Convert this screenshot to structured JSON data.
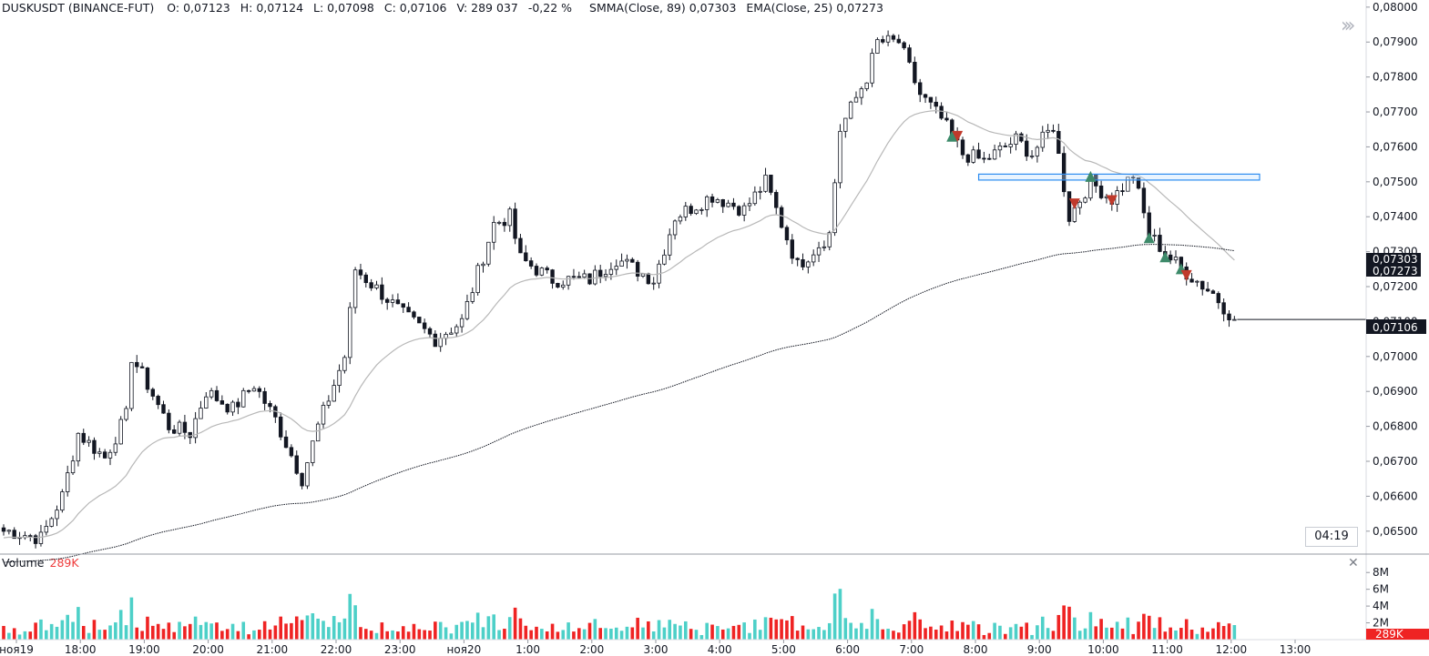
{
  "legend": {
    "symbol": "DUSKUSDT (BINANCE-FUT)",
    "open": "O: 0,07123",
    "high": "H: 0,07124",
    "low": "L: 0,07098",
    "close": "C: 0,07106",
    "volume": "V: 289 037",
    "change": "-0,22 %",
    "smma": "SMMA(Close, 89)  0,07303",
    "ema": "EMA(Close, 25)  0,07273"
  },
  "volume_legend": {
    "label": "Volume",
    "value": "289K"
  },
  "timer": "04:19",
  "price_axis": {
    "labels": [
      "0,08000",
      "0,07900",
      "0,07800",
      "0,07700",
      "0,07600",
      "0,07500",
      "0,07400",
      "0,07300",
      "0,07200",
      "0,07100",
      "0,07000",
      "0,06900",
      "0,06800",
      "0,06700",
      "0,06600",
      "0,06500"
    ],
    "smma_tag": "0,07303",
    "ema_tag": "0,07273",
    "last_tag": "0,07106"
  },
  "volume_axis": {
    "labels": [
      "8M",
      "6M",
      "4M",
      "2M"
    ],
    "last_tag": "289K"
  },
  "time_axis": [
    "ноя19",
    "18:00",
    "19:00",
    "20:00",
    "21:00",
    "22:00",
    "23:00",
    "ноя20",
    "1:00",
    "2:00",
    "3:00",
    "4:00",
    "5:00",
    "6:00",
    "7:00",
    "8:00",
    "9:00",
    "10:00",
    "11:00",
    "12:00",
    "13:00"
  ],
  "colors": {
    "up": "#4dd0c8",
    "down": "#ef2323",
    "candle": "#131722",
    "ema": "#b8b8b8",
    "smma": "#131722",
    "box": "#2d8cf0",
    "buy": "#3d8a6a",
    "sell": "#c0392b"
  },
  "chart_data": {
    "type": "candlestick",
    "title": "DUSKUSDT (BINANCE-FUT)",
    "interval_minutes": 5,
    "ylim": [
      0.0645,
      0.0801
    ],
    "close_path": [
      [
        "17:10",
        0.065
      ],
      [
        "17:40",
        0.0648
      ],
      [
        "18:00",
        0.066
      ],
      [
        "18:15",
        0.0678
      ],
      [
        "18:40",
        0.0671
      ],
      [
        "19:00",
        0.0683
      ],
      [
        "19:05",
        0.07
      ],
      [
        "19:20",
        0.0692
      ],
      [
        "19:40",
        0.068
      ],
      [
        "20:00",
        0.0678
      ],
      [
        "20:15",
        0.069
      ],
      [
        "20:40",
        0.0685
      ],
      [
        "21:00",
        0.0692
      ],
      [
        "21:20",
        0.0682
      ],
      [
        "21:45",
        0.0665
      ],
      [
        "22:00",
        0.068
      ],
      [
        "22:25",
        0.07
      ],
      [
        "22:35",
        0.0725
      ],
      [
        "23:00",
        0.0718
      ],
      [
        "23:20",
        0.0712
      ],
      [
        "23:50",
        0.0705
      ],
      [
        "00:15",
        0.071
      ],
      [
        "00:45",
        0.0738
      ],
      [
        "01:00",
        0.074
      ],
      [
        "01:10",
        0.0728
      ],
      [
        "01:40",
        0.0722
      ],
      [
        "02:15",
        0.0722
      ],
      [
        "02:40",
        0.0728
      ],
      [
        "03:15",
        0.0722
      ],
      [
        "03:35",
        0.074
      ],
      [
        "04:10",
        0.0746
      ],
      [
        "04:40",
        0.0742
      ],
      [
        "05:00",
        0.075
      ],
      [
        "05:30",
        0.0726
      ],
      [
        "06:00",
        0.0735
      ],
      [
        "06:10",
        0.0765
      ],
      [
        "06:35",
        0.078
      ],
      [
        "06:45",
        0.079
      ],
      [
        "07:05",
        0.079
      ],
      [
        "07:25",
        0.0775
      ],
      [
        "07:45",
        0.0768
      ],
      [
        "08:05",
        0.0758
      ],
      [
        "08:25",
        0.0756
      ],
      [
        "08:55",
        0.0762
      ],
      [
        "09:10",
        0.0758
      ],
      [
        "09:30",
        0.0766
      ],
      [
        "09:45",
        0.074
      ],
      [
        "10:05",
        0.075
      ],
      [
        "10:25",
        0.0745
      ],
      [
        "10:45",
        0.0752
      ],
      [
        "11:00",
        0.0735
      ],
      [
        "11:20",
        0.0728
      ],
      [
        "11:35",
        0.0724
      ],
      [
        "12:00",
        0.0718
      ],
      [
        "12:20",
        0.07106
      ]
    ],
    "indicators": [
      {
        "name": "SMMA(Close, 89)",
        "last": 0.07303
      },
      {
        "name": "EMA(Close, 25)",
        "last": 0.07273
      }
    ],
    "last_price": 0.07106,
    "change_pct": -0.22,
    "last_volume": 289037,
    "volume_ylim": [
      0,
      9000000
    ],
    "zone": {
      "from": "08:20",
      "to": "13:00",
      "low": 0.07505,
      "high": 0.07522
    },
    "signals": [
      {
        "t": "07:55",
        "type": "buy"
      },
      {
        "t": "07:55",
        "type": "buy"
      },
      {
        "t": "08:00",
        "type": "sell"
      },
      {
        "t": "09:50",
        "type": "sell"
      },
      {
        "t": "10:05",
        "type": "buy"
      },
      {
        "t": "10:25",
        "type": "sell"
      },
      {
        "t": "11:00",
        "type": "buy"
      },
      {
        "t": "11:15",
        "type": "buy"
      },
      {
        "t": "11:30",
        "type": "buy"
      },
      {
        "t": "11:35",
        "type": "sell"
      }
    ]
  }
}
